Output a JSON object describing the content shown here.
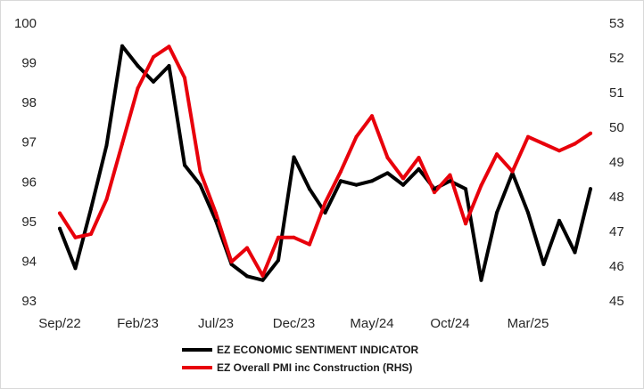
{
  "chart_data": {
    "type": "line",
    "x": [
      "Sep/22",
      "Oct/22",
      "Nov/22",
      "Dec/22",
      "Jan/23",
      "Feb/23",
      "Mar/23",
      "Apr/23",
      "May/23",
      "Jun/23",
      "Jul/23",
      "Aug/23",
      "Sep/23",
      "Oct/23",
      "Nov/23",
      "Dec/23",
      "Jan/24",
      "Feb/24",
      "Mar/24",
      "Apr/24",
      "May/24",
      "Jun/24",
      "Jul/24",
      "Aug/24",
      "Sep/24",
      "Oct/24",
      "Nov/24",
      "Dec/24",
      "Jan/25",
      "Feb/25",
      "Mar/25",
      "Apr/25",
      "May/25",
      "Jun/25",
      "Jul/25"
    ],
    "x_tick_labels": [
      "Sep/22",
      "Feb/23",
      "Jul/23",
      "Dec/23",
      "May/24",
      "Oct/24",
      "Mar/25"
    ],
    "x_tick_index": [
      0,
      5,
      10,
      15,
      20,
      25,
      30
    ],
    "y_left": {
      "min": 93,
      "max": 100,
      "ticks": [
        "93",
        "94",
        "95",
        "96",
        "97",
        "98",
        "99",
        "100"
      ]
    },
    "y_right": {
      "min": 45,
      "max": 53,
      "ticks": [
        "45",
        "46",
        "47",
        "48",
        "49",
        "50",
        "51",
        "52",
        "53"
      ]
    },
    "grid": "none",
    "legend_position": "bottom",
    "series": [
      {
        "name": "EZ ECONOMIC SENTIMENT INDICATOR",
        "axis": "left",
        "color": "#000000",
        "values": [
          94.8,
          93.8,
          95.3,
          96.9,
          99.4,
          98.9,
          98.5,
          98.9,
          96.4,
          95.9,
          95.0,
          93.9,
          93.6,
          93.5,
          94.0,
          96.6,
          95.8,
          95.2,
          96.0,
          95.9,
          96.0,
          96.2,
          95.9,
          96.3,
          95.8,
          96.0,
          95.8,
          93.5,
          95.2,
          96.2,
          95.2,
          93.9,
          95.0,
          94.2,
          95.8
        ]
      },
      {
        "name": "EZ Overall PMI inc Construction (RHS)",
        "axis": "right",
        "color": "#e8000b",
        "values": [
          47.5,
          46.8,
          46.9,
          47.9,
          49.5,
          51.1,
          52.0,
          52.3,
          51.4,
          48.7,
          47.5,
          46.1,
          46.5,
          45.7,
          46.8,
          46.8,
          46.6,
          47.8,
          48.7,
          49.7,
          50.3,
          49.1,
          48.5,
          49.1,
          48.1,
          48.6,
          47.2,
          48.3,
          49.2,
          48.7,
          49.7,
          49.5,
          49.3,
          49.5,
          49.8
        ]
      }
    ]
  }
}
